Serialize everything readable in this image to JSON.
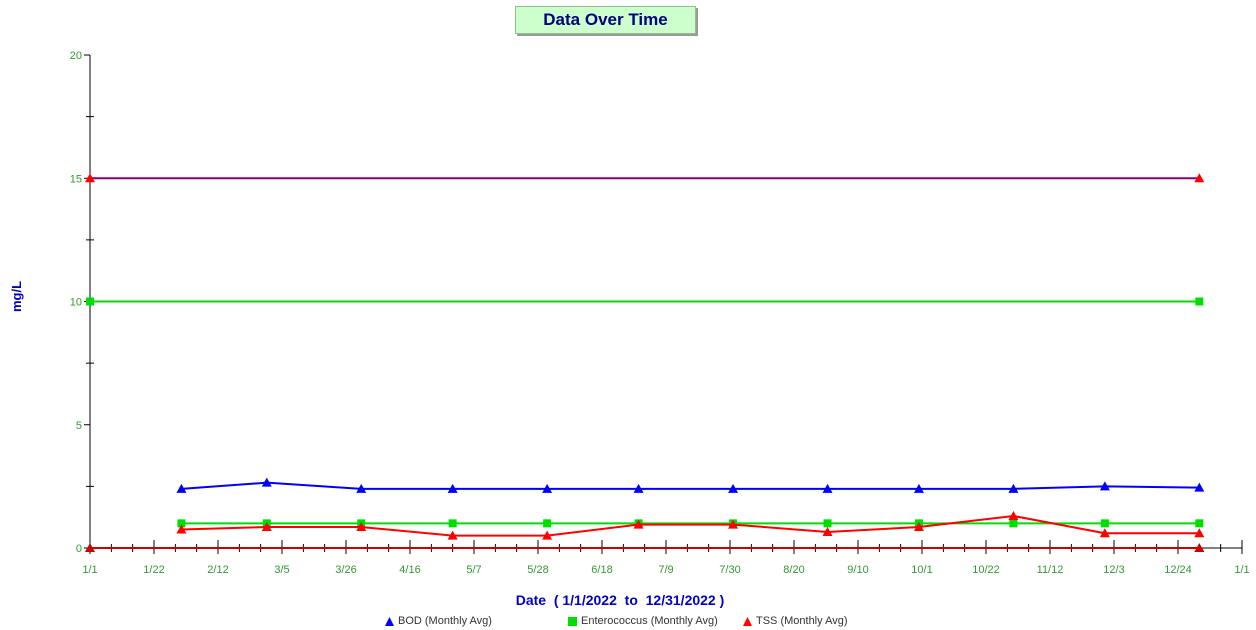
{
  "chart_data": {
    "type": "line",
    "title": "Data Over Time",
    "xlabel": "Date  ( 1/1/2022  to  12/31/2022 )",
    "ylabel": "mg/L",
    "ylim": [
      0,
      20
    ],
    "xlim": [
      "2022-01-01",
      "2023-01-01"
    ],
    "y_ticks": [
      "0",
      "5",
      "10",
      "15",
      "20"
    ],
    "x_ticks": [
      {
        "date": "2022-01-01",
        "label": "1/1"
      },
      {
        "date": "2022-01-22",
        "label": "1/22"
      },
      {
        "date": "2022-02-12",
        "label": "2/12"
      },
      {
        "date": "2022-03-05",
        "label": "3/5"
      },
      {
        "date": "2022-03-26",
        "label": "3/26"
      },
      {
        "date": "2022-04-16",
        "label": "4/16"
      },
      {
        "date": "2022-05-07",
        "label": "5/7"
      },
      {
        "date": "2022-05-28",
        "label": "5/28"
      },
      {
        "date": "2022-06-18",
        "label": "6/18"
      },
      {
        "date": "2022-07-09",
        "label": "7/9"
      },
      {
        "date": "2022-07-30",
        "label": "7/30"
      },
      {
        "date": "2022-08-20",
        "label": "8/20"
      },
      {
        "date": "2022-09-10",
        "label": "9/10"
      },
      {
        "date": "2022-10-01",
        "label": "10/1"
      },
      {
        "date": "2022-10-22",
        "label": "10/22"
      },
      {
        "date": "2022-11-12",
        "label": "11/12"
      },
      {
        "date": "2022-12-03",
        "label": "12/3"
      },
      {
        "date": "2022-12-24",
        "label": "12/24"
      },
      {
        "date": "2023-01-14",
        "label": "1/1"
      }
    ],
    "limit_lines": [
      {
        "value": 15,
        "color": "#800080",
        "marker": "triangle",
        "marker_color": "#ff0000",
        "start": "2022-01-01",
        "end": "2022-12-31"
      },
      {
        "value": 10,
        "color": "#00dd00",
        "marker": "square",
        "marker_color": "#00dd00",
        "start": "2022-01-01",
        "end": "2022-12-31"
      },
      {
        "value": 0,
        "color": "#cc0000",
        "marker": "triangle",
        "marker_color": "#cc0000",
        "start": "2022-01-01",
        "end": "2022-12-31"
      }
    ],
    "series": [
      {
        "name": "BOD (Monthly Avg)",
        "color": "#0000ff",
        "marker": "triangle",
        "x": [
          "2022-01-31",
          "2022-02-28",
          "2022-03-31",
          "2022-04-30",
          "2022-05-31",
          "2022-06-30",
          "2022-07-31",
          "2022-08-31",
          "2022-09-30",
          "2022-10-31",
          "2022-11-30",
          "2022-12-31"
        ],
        "values": [
          2.4,
          2.65,
          2.4,
          2.4,
          2.4,
          2.4,
          2.4,
          2.4,
          2.4,
          2.4,
          2.5,
          2.45
        ]
      },
      {
        "name": "Enterococcus (Monthly Avg)",
        "color": "#00dd00",
        "marker": "square",
        "x": [
          "2022-01-31",
          "2022-02-28",
          "2022-03-31",
          "2022-04-30",
          "2022-05-31",
          "2022-06-30",
          "2022-07-31",
          "2022-08-31",
          "2022-09-30",
          "2022-10-31",
          "2022-11-30",
          "2022-12-31"
        ],
        "values": [
          1.0,
          1.0,
          1.0,
          1.0,
          1.0,
          1.0,
          1.0,
          1.0,
          1.0,
          1.0,
          1.0,
          1.0
        ]
      },
      {
        "name": "TSS (Monthly Avg)",
        "color": "#ff0000",
        "marker": "triangle",
        "x": [
          "2022-01-31",
          "2022-02-28",
          "2022-03-31",
          "2022-04-30",
          "2022-05-31",
          "2022-06-30",
          "2022-07-31",
          "2022-08-31",
          "2022-09-30",
          "2022-10-31",
          "2022-11-30",
          "2022-12-31"
        ],
        "values": [
          0.75,
          0.85,
          0.85,
          0.5,
          0.5,
          0.95,
          0.95,
          0.65,
          0.85,
          1.3,
          0.6,
          0.6
        ]
      }
    ],
    "legend_position": "bottom",
    "grid": false
  }
}
